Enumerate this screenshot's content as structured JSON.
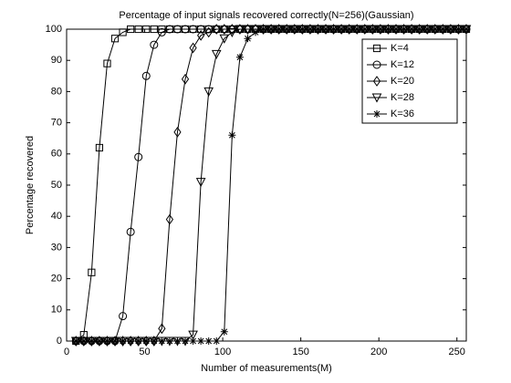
{
  "chart_data": {
    "type": "line",
    "title": "Percentage of input signals recovered correctly(N=256)(Gaussian)",
    "x_label": "Number of measurements(M)",
    "y_label": "Percentage recovered",
    "x": [
      6,
      11,
      16,
      21,
      26,
      31,
      36,
      41,
      46,
      51,
      56,
      61,
      66,
      71,
      76,
      81,
      86,
      91,
      96,
      101,
      106,
      111,
      116,
      121,
      126,
      131,
      136,
      141,
      146,
      151,
      156,
      161,
      166,
      171,
      176,
      181,
      186,
      191,
      196,
      201,
      206,
      211,
      216,
      221,
      226,
      231,
      236,
      241,
      246,
      251,
      256
    ],
    "xlim": [
      0,
      256
    ],
    "ylim": [
      0,
      100
    ],
    "xticks": [
      0,
      50,
      100,
      150,
      200,
      250
    ],
    "yticks": [
      0,
      10,
      20,
      30,
      40,
      50,
      60,
      70,
      80,
      90,
      100
    ],
    "legend": "upper right",
    "series": [
      {
        "name": "K=4",
        "color": "#000000",
        "marker": "square",
        "values": [
          0,
          2,
          22,
          62,
          89,
          97,
          99,
          100,
          100,
          100,
          100,
          100,
          100,
          100,
          100,
          100,
          100,
          100,
          100,
          100,
          100,
          100,
          100,
          100,
          100,
          100,
          100,
          100,
          100,
          100,
          100,
          100,
          100,
          100,
          100,
          100,
          100,
          100,
          100,
          100,
          100,
          100,
          100,
          100,
          100,
          100,
          100,
          100,
          100,
          100,
          100
        ]
      },
      {
        "name": "K=12",
        "color": "#000000",
        "marker": "circle",
        "values": [
          0,
          0,
          0,
          0,
          0,
          0,
          8,
          35,
          59,
          85,
          95,
          99,
          100,
          100,
          100,
          100,
          100,
          100,
          100,
          100,
          100,
          100,
          100,
          100,
          100,
          100,
          100,
          100,
          100,
          100,
          100,
          100,
          100,
          100,
          100,
          100,
          100,
          100,
          100,
          100,
          100,
          100,
          100,
          100,
          100,
          100,
          100,
          100,
          100,
          100,
          100
        ]
      },
      {
        "name": "K=20",
        "color": "#000000",
        "marker": "diamond",
        "values": [
          0,
          0,
          0,
          0,
          0,
          0,
          0,
          0,
          0,
          0,
          0,
          4,
          39,
          67,
          84,
          94,
          98,
          99,
          100,
          100,
          100,
          100,
          100,
          100,
          100,
          100,
          100,
          100,
          100,
          100,
          100,
          100,
          100,
          100,
          100,
          100,
          100,
          100,
          100,
          100,
          100,
          100,
          100,
          100,
          100,
          100,
          100,
          100,
          100,
          100,
          100
        ]
      },
      {
        "name": "K=28",
        "color": "#000000",
        "marker": "triangle-down",
        "values": [
          0,
          0,
          0,
          0,
          0,
          0,
          0,
          0,
          0,
          0,
          0,
          0,
          0,
          0,
          0,
          2,
          51,
          80,
          92,
          97,
          99,
          100,
          100,
          100,
          100,
          100,
          100,
          100,
          100,
          100,
          100,
          100,
          100,
          100,
          100,
          100,
          100,
          100,
          100,
          100,
          100,
          100,
          100,
          100,
          100,
          100,
          100,
          100,
          100,
          100,
          100
        ]
      },
      {
        "name": "K=36",
        "color": "#000000",
        "marker": "asterisk",
        "values": [
          0,
          0,
          0,
          0,
          0,
          0,
          0,
          0,
          0,
          0,
          0,
          0,
          0,
          0,
          0,
          0,
          0,
          0,
          0,
          3,
          66,
          91,
          97,
          99,
          100,
          100,
          100,
          100,
          100,
          100,
          100,
          100,
          100,
          100,
          100,
          100,
          100,
          100,
          100,
          100,
          100,
          100,
          100,
          100,
          100,
          100,
          100,
          100,
          100,
          100,
          100
        ]
      }
    ]
  }
}
